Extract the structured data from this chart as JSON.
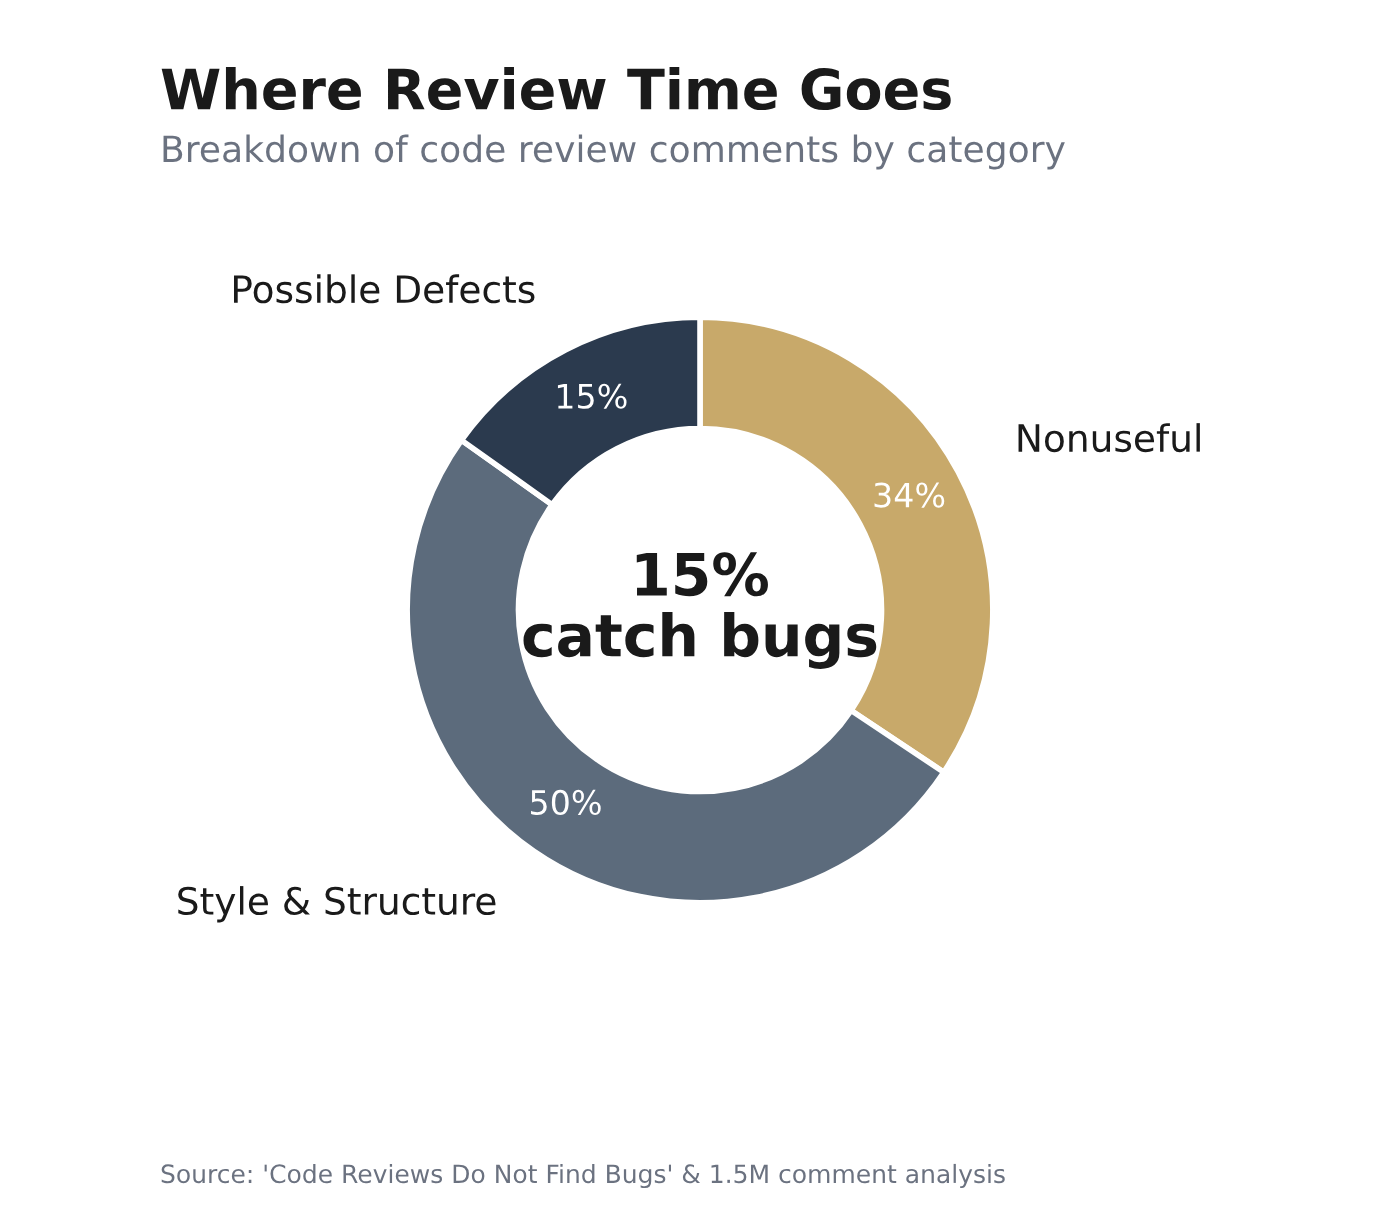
{
  "chart_data": {
    "type": "donut",
    "title": "Where Review Time Goes",
    "subtitle": "Breakdown of code review comments by category",
    "categories": [
      "Nonuseful",
      "Style & Structure",
      "Possible Defects"
    ],
    "values": [
      34,
      50,
      15
    ],
    "colors": [
      "#c8a96a",
      "#5c6b7c",
      "#2b3a4e"
    ],
    "value_labels": [
      "34%",
      "50%",
      "15%"
    ],
    "annotations": [
      "15%\ncatch bugs",
      "Source: 'Code Reviews Do Not Find Bugs' & 1.5M comment analysis"
    ],
    "legend": false
  }
}
